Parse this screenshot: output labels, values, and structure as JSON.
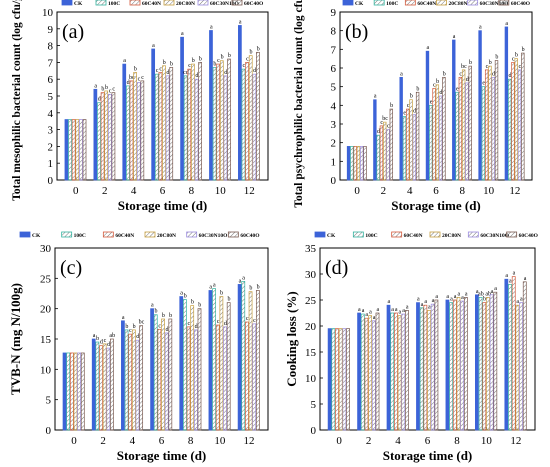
{
  "figure": {
    "series_names": [
      "CK",
      "100C",
      "60C40N",
      "20C80N",
      "60C30N10O",
      "60C40O"
    ],
    "colors": [
      "#3c63d8",
      "#33b4a0",
      "#d45a3c",
      "#c8a040",
      "#9c8ce0",
      "#7a5a50"
    ],
    "x_axis_title": "Storage time (d)"
  },
  "chart_data": [
    {
      "type": "bar",
      "panel_label": "(a)",
      "ylabel": "Total mesophilic bacterial count (log cfu/g)",
      "xlabel": "Storage time (d)",
      "ylim": [
        0,
        10
      ],
      "yticks": [
        0,
        1,
        2,
        3,
        4,
        5,
        6,
        7,
        8,
        9,
        10
      ],
      "categories": [
        "0",
        "2",
        "4",
        "6",
        "8",
        "10",
        "12"
      ],
      "series": [
        {
          "name": "CK",
          "values": [
            3.6,
            5.4,
            6.9,
            7.8,
            8.5,
            8.9,
            9.2
          ],
          "letters": [
            "",
            "a",
            "a",
            "a",
            "a",
            "a",
            "a"
          ]
        },
        {
          "name": "100C",
          "values": [
            3.6,
            4.6,
            5.6,
            6.3,
            6.2,
            6.7,
            6.6
          ],
          "letters": [
            "",
            "d",
            "d",
            "c",
            "cd",
            "b",
            "c"
          ]
        },
        {
          "name": "60C40N",
          "values": [
            3.6,
            5.2,
            5.9,
            6.4,
            6.6,
            6.9,
            7.0
          ],
          "letters": [
            "",
            "b",
            "bc",
            "c",
            "c",
            "c",
            "c"
          ]
        },
        {
          "name": "20C80N",
          "values": [
            3.6,
            5.3,
            6.4,
            6.8,
            6.9,
            7.1,
            7.4
          ],
          "letters": [
            "",
            "b",
            "b",
            "b",
            "b",
            "b",
            "b"
          ]
        },
        {
          "name": "60C30N10O",
          "values": [
            3.6,
            5.1,
            5.8,
            6.2,
            6.0,
            6.2,
            6.3
          ],
          "letters": [
            "",
            "c",
            "c",
            "d",
            "d",
            "d",
            "d"
          ]
        },
        {
          "name": "60C40O",
          "values": [
            3.6,
            5.2,
            5.9,
            6.7,
            7.0,
            7.2,
            7.6
          ],
          "letters": [
            "",
            "c",
            "c",
            "b",
            "b",
            "b",
            "b"
          ]
        }
      ]
    },
    {
      "type": "bar",
      "panel_label": "(b)",
      "ylabel": "Total psychrophilic bacterial count (log cfu/g)",
      "xlabel": "Storage time (d)",
      "ylim": [
        0,
        9
      ],
      "yticks": [
        0,
        1,
        2,
        3,
        4,
        5,
        6,
        7,
        8,
        9
      ],
      "categories": [
        "0",
        "2",
        "4",
        "6",
        "8",
        "10",
        "12"
      ],
      "series": [
        {
          "name": "CK",
          "values": [
            1.8,
            4.3,
            5.5,
            6.9,
            7.5,
            8.0,
            8.2
          ],
          "letters": [
            "",
            "a",
            "a",
            "a",
            "a",
            "a",
            "a"
          ]
        },
        {
          "name": "100C",
          "values": [
            1.8,
            2.4,
            3.4,
            4.0,
            4.7,
            5.0,
            5.4
          ],
          "letters": [
            "",
            "d",
            "e",
            "e",
            "e",
            "e",
            "d"
          ]
        },
        {
          "name": "60C40N",
          "values": [
            1.8,
            2.9,
            3.8,
            4.9,
            5.5,
            5.9,
            6.3
          ],
          "letters": [
            "",
            "c",
            "c",
            "c",
            "c",
            "c",
            "c"
          ]
        },
        {
          "name": "20C80N",
          "values": [
            1.8,
            3.1,
            4.3,
            5.1,
            5.9,
            6.1,
            6.5
          ],
          "letters": [
            "",
            "bc",
            "b",
            "b",
            "bc",
            "b",
            "b"
          ]
        },
        {
          "name": "60C30N10O",
          "values": [
            1.8,
            2.7,
            3.5,
            4.5,
            5.2,
            5.5,
            5.9
          ],
          "letters": [
            "",
            "c",
            "d",
            "d",
            "d",
            "d",
            "c"
          ]
        },
        {
          "name": "60C40O",
          "values": [
            1.8,
            3.8,
            4.7,
            5.5,
            6.1,
            6.4,
            6.8
          ],
          "letters": [
            "",
            "b",
            "b",
            "b",
            "b",
            "b",
            "b"
          ]
        }
      ]
    },
    {
      "type": "bar",
      "panel_label": "(c)",
      "ylabel": "TVB-N (mg N/100g)",
      "xlabel": "Storage time (d)",
      "ylim": [
        0,
        30
      ],
      "yticks": [
        0,
        5,
        10,
        15,
        20,
        25,
        30
      ],
      "categories": [
        "0",
        "2",
        "4",
        "6",
        "8",
        "10",
        "12"
      ],
      "series": [
        {
          "name": "CK",
          "values": [
            12.7,
            15.0,
            18.0,
            20.0,
            22.0,
            23.0,
            24.0
          ],
          "letters": [
            "",
            "a",
            "a",
            "a",
            "a",
            "a",
            "a"
          ]
        },
        {
          "name": "100C",
          "values": [
            12.7,
            14.5,
            16.5,
            19.0,
            21.5,
            23.3,
            24.5
          ],
          "letters": [
            "",
            "b",
            "b",
            "b",
            "b",
            "a",
            "a"
          ]
        },
        {
          "name": "60C40N",
          "values": [
            12.7,
            13.9,
            15.8,
            16.6,
            17.0,
            17.3,
            17.8
          ],
          "letters": [
            "",
            "d",
            "c",
            "c",
            "c",
            "c",
            "c"
          ]
        },
        {
          "name": "20C80N",
          "values": [
            12.7,
            14.2,
            16.5,
            18.3,
            20.5,
            22.0,
            22.8
          ],
          "letters": [
            "",
            "c",
            "b",
            "b",
            "b",
            "b",
            "b"
          ]
        },
        {
          "name": "60C30N10O",
          "values": [
            12.7,
            13.5,
            14.8,
            16.0,
            16.5,
            17.0,
            17.5
          ],
          "letters": [
            "",
            "d",
            "d",
            "d",
            "d",
            "d",
            "c"
          ]
        },
        {
          "name": "60C40O",
          "values": [
            12.7,
            15.0,
            17.2,
            18.3,
            20.0,
            21.0,
            23.0
          ],
          "letters": [
            "",
            "ab",
            "bc",
            "b",
            "b",
            "b",
            "b"
          ]
        }
      ]
    },
    {
      "type": "bar",
      "panel_label": "(d)",
      "ylabel": "Cooking loss (%)",
      "xlabel": "Storage time (d)",
      "ylim": [
        0,
        35
      ],
      "yticks": [
        0,
        5,
        10,
        15,
        20,
        25,
        30,
        35
      ],
      "categories": [
        "0",
        "2",
        "4",
        "6",
        "8",
        "10",
        "12"
      ],
      "series": [
        {
          "name": "CK",
          "values": [
            19.5,
            22.5,
            24.0,
            24.5,
            25.0,
            26.0,
            29.0
          ],
          "letters": [
            "",
            "a",
            "a",
            "a",
            "a",
            "a",
            "a"
          ]
        },
        {
          "name": "100C",
          "values": [
            19.5,
            22.3,
            22.5,
            23.5,
            24.5,
            25.5,
            28.0
          ],
          "letters": [
            "",
            "a",
            "a",
            "a",
            "a",
            "ab",
            "a"
          ]
        },
        {
          "name": "60C40N",
          "values": [
            19.5,
            21.5,
            22.5,
            24.0,
            25.0,
            24.5,
            29.5
          ],
          "letters": [
            "",
            "a",
            "a",
            "a",
            "a",
            "b",
            "a"
          ]
        },
        {
          "name": "20C80N",
          "values": [
            19.5,
            22.0,
            22.0,
            23.0,
            25.5,
            25.5,
            24.0
          ],
          "letters": [
            "",
            "a",
            "a",
            "a",
            "a",
            "ab",
            "a"
          ]
        },
        {
          "name": "60C30N10O",
          "values": [
            19.5,
            21.0,
            22.3,
            24.2,
            24.8,
            26.0,
            24.5
          ],
          "letters": [
            "",
            "a",
            "a",
            "a",
            "a",
            "a",
            "a"
          ]
        },
        {
          "name": "60C40O",
          "values": [
            19.5,
            22.5,
            23.0,
            25.0,
            25.5,
            26.5,
            28.5
          ],
          "letters": [
            "",
            "a",
            "a",
            "a",
            "a",
            "a",
            "a"
          ]
        }
      ]
    }
  ]
}
